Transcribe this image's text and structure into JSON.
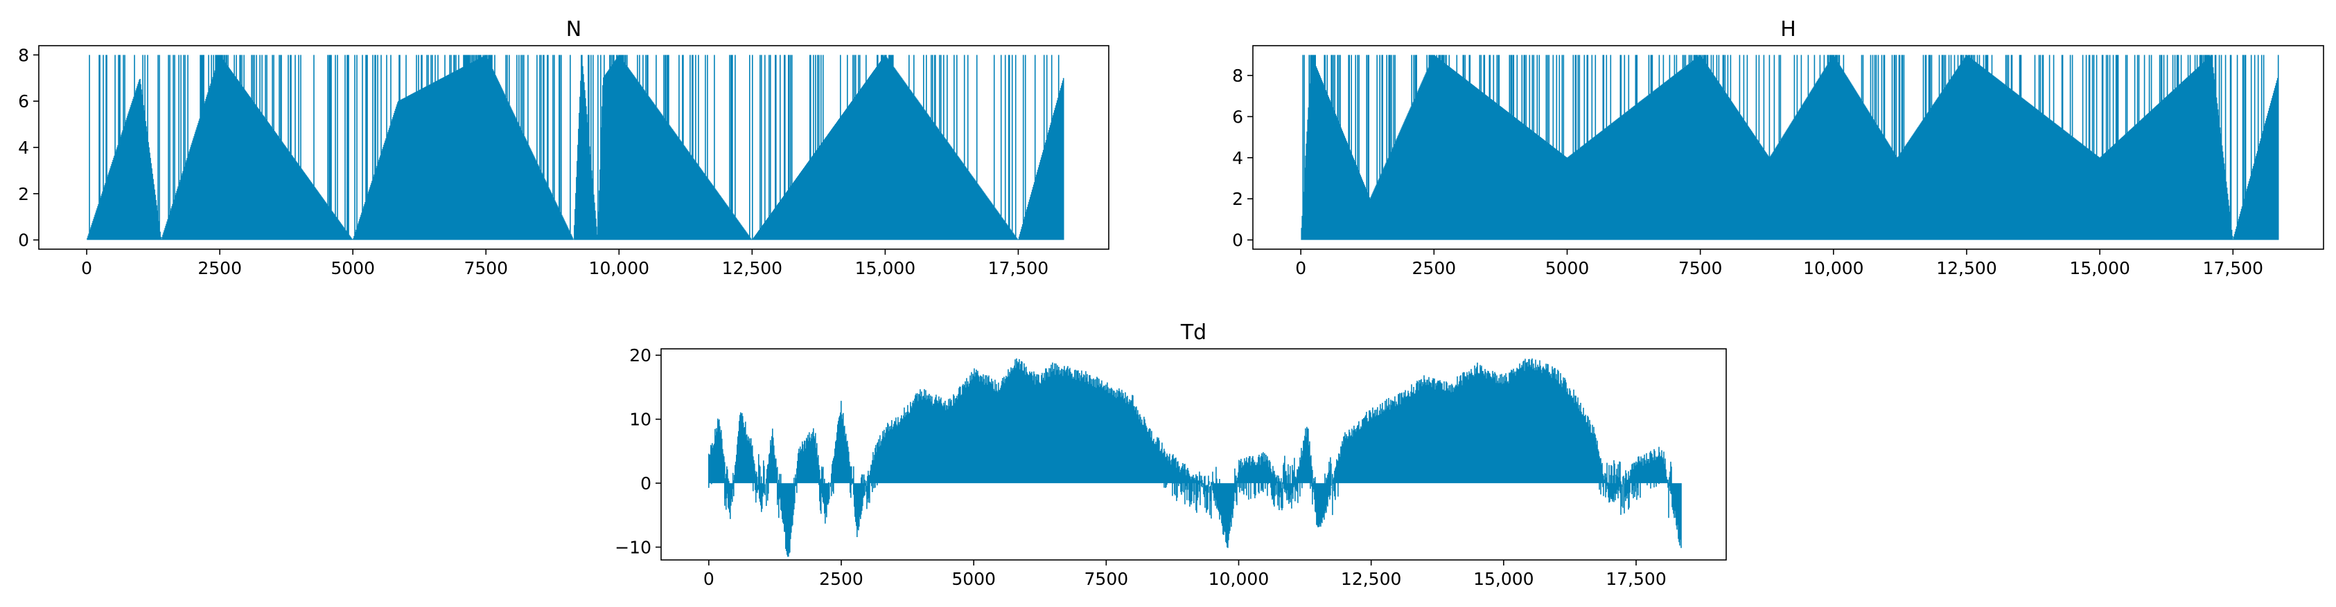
{
  "chart_data": [
    {
      "type": "line",
      "title": "N",
      "xlabel": "",
      "ylabel": "",
      "xlim": [
        -900,
        19200
      ],
      "ylim": [
        -0.4,
        8.4
      ],
      "x_ticks": [
        0,
        2500,
        5000,
        7500,
        10000,
        12500,
        15000,
        17500
      ],
      "x_tick_labels": [
        "0",
        "2500",
        "5000",
        "7500",
        "10,000",
        "12,500",
        "15,000",
        "17,500"
      ],
      "y_ticks": [
        0,
        2,
        4,
        6,
        8
      ],
      "y_tick_labels": [
        "0",
        "2",
        "4",
        "6",
        "8"
      ],
      "color": "#0282B8",
      "grid": false,
      "n_points": 18360,
      "value_range": [
        0,
        8
      ],
      "series": [
        {
          "x": [
            0,
            1000,
            1400,
            2500,
            5000,
            5850,
            7500,
            9150,
            9300,
            9600,
            9700,
            10000,
            12500,
            15000,
            17500,
            18350
          ],
          "values": [
            0,
            7,
            0,
            8,
            0,
            6,
            8,
            0,
            8,
            0,
            7,
            8,
            0,
            8,
            0,
            7
          ]
        }
      ]
    },
    {
      "type": "line",
      "title": "H",
      "xlabel": "",
      "ylabel": "",
      "xlim": [
        -900,
        19200
      ],
      "ylim": [
        -0.45,
        9.45
      ],
      "x_ticks": [
        0,
        2500,
        5000,
        7500,
        10000,
        12500,
        15000,
        17500
      ],
      "x_tick_labels": [
        "0",
        "2500",
        "5000",
        "7500",
        "10,000",
        "12,500",
        "15,000",
        "17,500"
      ],
      "y_ticks": [
        0,
        2,
        4,
        6,
        8
      ],
      "y_tick_labels": [
        "0",
        "2",
        "4",
        "6",
        "8"
      ],
      "color": "#0282B8",
      "grid": false,
      "n_points": 18360,
      "value_range": [
        0,
        9
      ],
      "series": [
        {
          "x": [
            0,
            200,
            1300,
            2500,
            5000,
            7500,
            8800,
            10000,
            11200,
            12500,
            15000,
            17100,
            17500,
            18350
          ],
          "values": [
            0,
            9,
            2,
            9,
            4,
            9,
            4,
            9,
            4,
            9,
            4,
            9,
            0,
            8
          ]
        }
      ]
    },
    {
      "type": "line",
      "title": "Td",
      "xlabel": "",
      "ylabel": "",
      "xlim": [
        -900,
        19200
      ],
      "ylim": [
        -12,
        21
      ],
      "x_ticks": [
        0,
        2500,
        5000,
        7500,
        10000,
        12500,
        15000,
        17500
      ],
      "x_tick_labels": [
        "0",
        "2500",
        "5000",
        "7500",
        "10,000",
        "12,500",
        "15,000",
        "17,500"
      ],
      "y_ticks": [
        -10,
        0,
        10,
        20
      ],
      "y_tick_labels": [
        "−10",
        "0",
        "10",
        "20"
      ],
      "color": "#0282B8",
      "grid": false,
      "n_points": 18360,
      "value_range": [
        -11.5,
        19.5
      ],
      "series": [
        {
          "x": [
            0,
            200,
            400,
            600,
            800,
            1000,
            1200,
            1500,
            1700,
            2000,
            2200,
            2500,
            2700,
            2800,
            2900,
            3100,
            3300,
            3600,
            4000,
            4500,
            5000,
            5500,
            5800,
            6200,
            6500,
            7000,
            7500,
            8000,
            8300,
            8700,
            9000,
            9500,
            9800,
            10000,
            10500,
            11000,
            11300,
            11500,
            12000,
            12500,
            13000,
            13500,
            14000,
            14500,
            15000,
            15500,
            16000,
            16300,
            16700,
            17000,
            17500,
            18000,
            18350
          ],
          "values": [
            4,
            10,
            -5,
            11,
            6,
            -3,
            8,
            -11.5,
            5,
            8,
            -5,
            12,
            2,
            -7,
            -2,
            4,
            8,
            10,
            14,
            12,
            17,
            15,
            19,
            16,
            18,
            17,
            15,
            13,
            8,
            4,
            2,
            0,
            -9,
            3,
            4,
            -2,
            9,
            -7,
            7,
            11,
            13,
            16,
            15,
            18,
            16,
            19,
            17,
            14,
            8,
            -2,
            3,
            5,
            -9
          ]
        }
      ]
    }
  ]
}
